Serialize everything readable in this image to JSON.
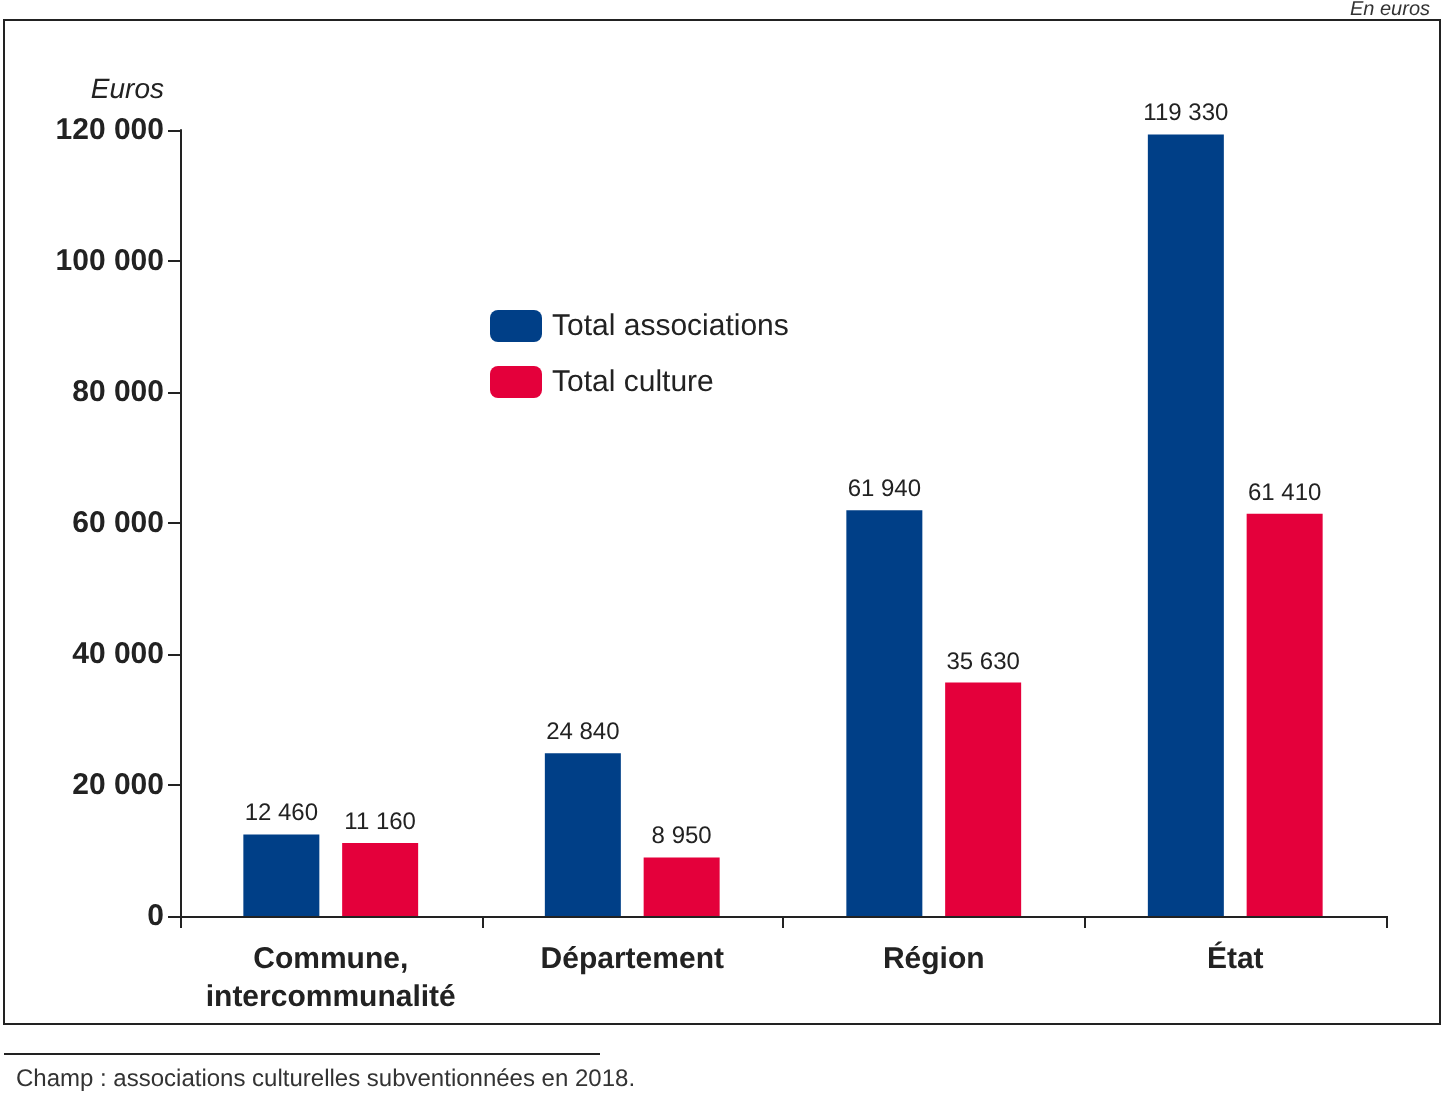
{
  "chart_data": {
    "type": "bar",
    "ylabel": "Euros",
    "categories": [
      "Commune,\nintercommunalité",
      "Département",
      "Région",
      "État"
    ],
    "series": [
      {
        "name": "Total associations",
        "color": "#003f87",
        "values": [
          12460,
          24840,
          61940,
          119330
        ],
        "value_labels": [
          "12 460",
          "24 840",
          "61 940",
          "119 330"
        ]
      },
      {
        "name": "Total culture",
        "color": "#e4003b",
        "values": [
          11160,
          8950,
          35630,
          61410
        ],
        "value_labels": [
          "11 160",
          "8 950",
          "35 630",
          "61 410"
        ]
      }
    ],
    "ylim": [
      0,
      120000
    ],
    "yticks": [
      {
        "value": 0,
        "label": "0"
      },
      {
        "value": 20000,
        "label": "20 000"
      },
      {
        "value": 40000,
        "label": "40 000"
      },
      {
        "value": 60000,
        "label": "60 000"
      },
      {
        "value": 80000,
        "label": "80 000"
      },
      {
        "value": 100000,
        "label": "100 000"
      },
      {
        "value": 120000,
        "label": "120 000"
      }
    ],
    "grid": false,
    "legend": "top left",
    "annotations": [
      "En euros",
      "Champ : associations culturelles subventionnées en 2018."
    ]
  }
}
